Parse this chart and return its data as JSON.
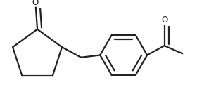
{
  "background": "#ffffff",
  "line_color": "#222222",
  "line_width": 1.6,
  "figsize": [
    2.8,
    1.34
  ],
  "dpi": 100,
  "xlim": [
    0.0,
    2.8
  ],
  "ylim": [
    0.0,
    1.34
  ]
}
